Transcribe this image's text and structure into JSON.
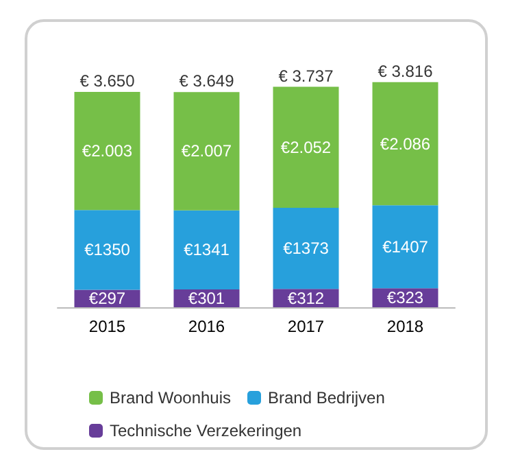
{
  "chart_data": {
    "type": "bar",
    "stacked": true,
    "categories": [
      "2015",
      "2016",
      "2017",
      "2018"
    ],
    "series": [
      {
        "name": "Technische Verzekeringen",
        "color": "#673d99",
        "values": [
          297,
          301,
          312,
          323
        ],
        "value_labels": [
          "€297",
          "€301",
          "€312",
          "€323"
        ]
      },
      {
        "name": "Brand Bedrijven",
        "color": "#27a0dc",
        "values": [
          1350,
          1341,
          1373,
          1407
        ],
        "value_labels": [
          "€1350",
          "€1341",
          "€1373",
          "€1407"
        ]
      },
      {
        "name": "Brand Woonhuis",
        "color": "#76bf48",
        "values": [
          2003,
          2007,
          2052,
          2086
        ],
        "value_labels": [
          "€2.003",
          "€2.007",
          "€2.052",
          "€2.086"
        ]
      }
    ],
    "totals": [
      "€ 3.650",
      "€ 3.649",
      "€ 3.737",
      "€ 3.816"
    ],
    "legend": "bottom"
  }
}
